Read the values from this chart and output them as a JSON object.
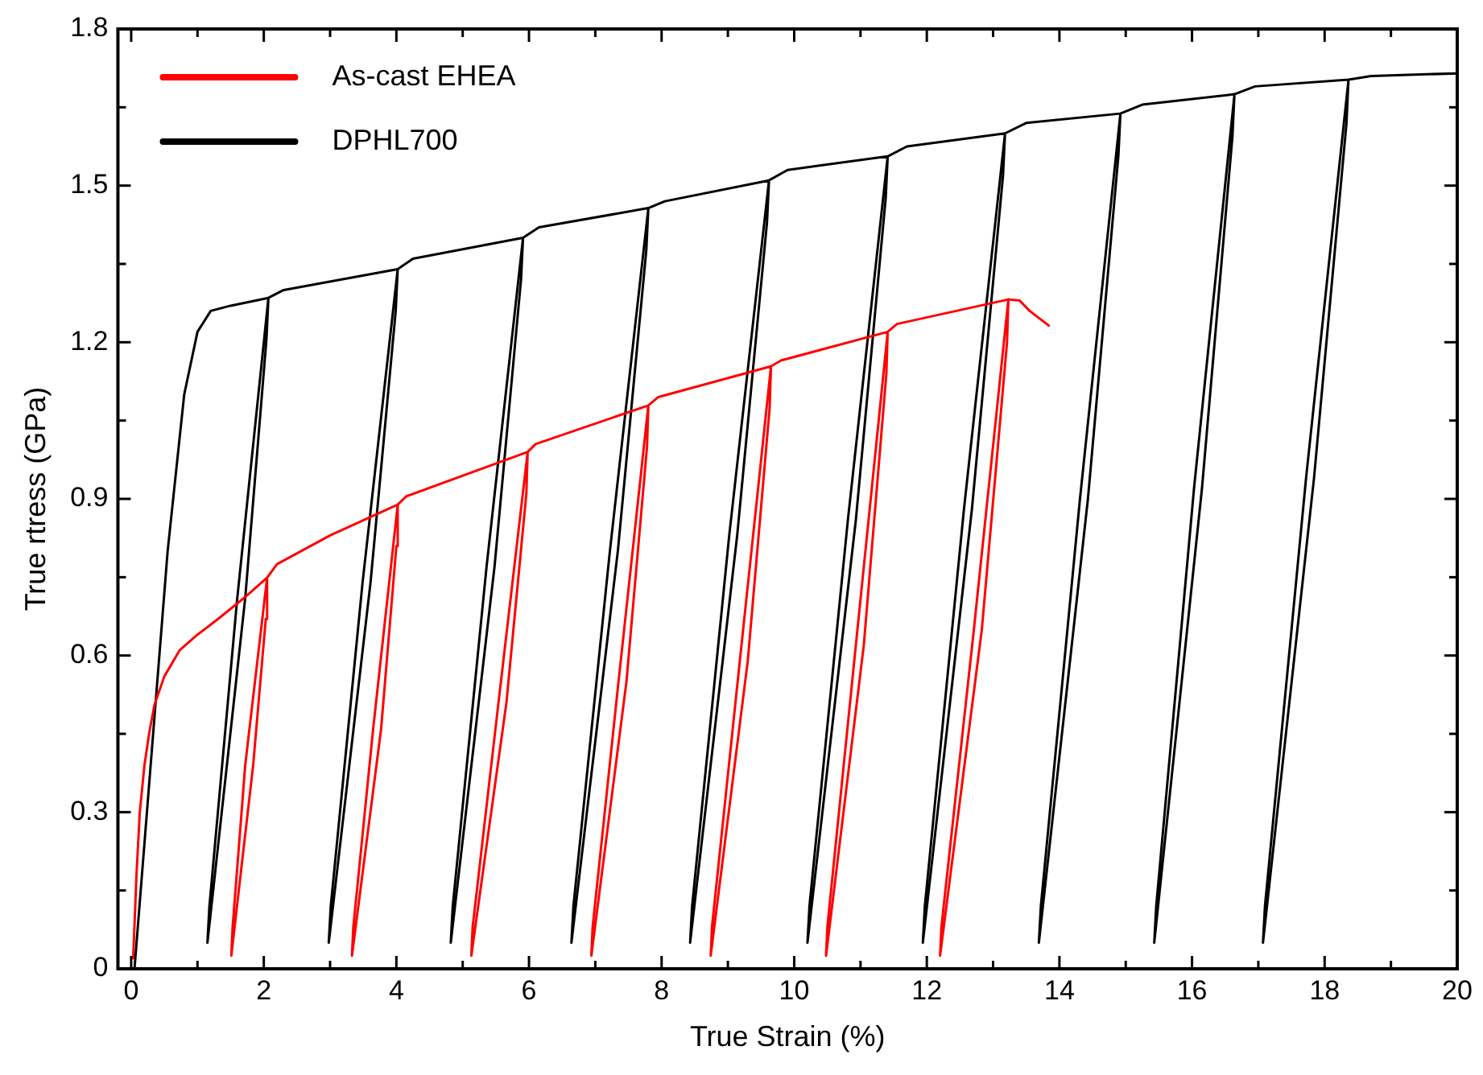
{
  "chart_data": {
    "type": "line",
    "xlabel": "True Strain (%)",
    "ylabel": "True rtress (GPa)",
    "xlim": [
      -0.2,
      20
    ],
    "xticks": [
      0,
      2,
      4,
      6,
      8,
      10,
      12,
      14,
      16,
      18,
      20
    ],
    "ylim": [
      0,
      1.8
    ],
    "yticks": [
      0,
      0.3,
      0.6,
      0.9,
      1.2,
      1.5,
      1.8
    ],
    "grid": false,
    "legend": "top left",
    "marker": "none",
    "line_style": "solid",
    "series": [
      {
        "name": "As-cast EHEA",
        "color": "#ff0000",
        "x": [
          0.03,
          0.08,
          0.13,
          0.2,
          0.27,
          0.35,
          0.5,
          0.73,
          1.0,
          1.31,
          1.7,
          2.05,
          1.72,
          1.53,
          1.51,
          1.84,
          2.03,
          2.05,
          2.2,
          3.0,
          4.02,
          3.65,
          3.35,
          3.33,
          3.77,
          4.0,
          4.02,
          4.15,
          5.98,
          5.54,
          5.15,
          5.13,
          5.66,
          5.96,
          5.98,
          6.1,
          7.8,
          7.35,
          6.96,
          6.94,
          7.47,
          7.78,
          7.8,
          7.95,
          9.65,
          9.18,
          8.76,
          8.74,
          9.3,
          9.63,
          9.65,
          9.8,
          11.41,
          10.93,
          10.5,
          10.48,
          11.05,
          11.39,
          11.41,
          11.55,
          13.23,
          12.71,
          12.22,
          12.2,
          12.83,
          13.21,
          13.23,
          13.4,
          13.55,
          13.84
        ],
        "values": [
          0.02,
          0.18,
          0.3,
          0.39,
          0.45,
          0.505,
          0.56,
          0.61,
          0.64,
          0.67,
          0.71,
          0.749,
          0.39,
          0.08,
          0.025,
          0.39,
          0.67,
          0.749,
          0.775,
          0.83,
          0.889,
          0.46,
          0.08,
          0.025,
          0.46,
          0.81,
          0.889,
          0.905,
          0.99,
          0.51,
          0.08,
          0.025,
          0.51,
          0.91,
          0.99,
          1.005,
          1.079,
          0.55,
          0.08,
          0.025,
          0.55,
          1.0,
          1.079,
          1.095,
          1.154,
          0.59,
          0.08,
          0.025,
          0.59,
          1.075,
          1.154,
          1.165,
          1.22,
          0.62,
          0.08,
          0.025,
          0.62,
          1.14,
          1.22,
          1.235,
          1.282,
          0.65,
          0.08,
          0.025,
          0.65,
          1.2,
          1.282,
          1.28,
          1.26,
          1.232
        ]
      },
      {
        "name": "DPHL700",
        "color": "#000000",
        "x": [
          0.05,
          0.3,
          0.55,
          0.8,
          1.0,
          1.2,
          1.5,
          2.07,
          1.6,
          1.18,
          1.15,
          1.72,
          2.04,
          2.07,
          2.3,
          4.02,
          3.49,
          3.01,
          2.98,
          3.61,
          3.99,
          4.02,
          4.25,
          5.91,
          5.36,
          4.85,
          4.82,
          5.48,
          5.88,
          5.91,
          6.15,
          7.8,
          7.22,
          6.67,
          6.64,
          7.34,
          7.77,
          7.8,
          8.05,
          9.62,
          9.02,
          8.46,
          8.43,
          9.14,
          9.59,
          9.62,
          9.9,
          11.41,
          10.81,
          10.23,
          10.2,
          10.93,
          11.38,
          11.41,
          11.7,
          13.18,
          12.56,
          11.97,
          11.94,
          12.68,
          13.15,
          13.18,
          13.5,
          14.92,
          14.31,
          13.72,
          13.69,
          14.43,
          14.89,
          14.92,
          15.25,
          16.64,
          16.03,
          15.46,
          15.43,
          16.15,
          16.61,
          16.64,
          16.95,
          18.36,
          17.72,
          17.1,
          17.07,
          17.84,
          18.33,
          18.36,
          18.7,
          20
        ],
        "values": [
          0,
          0.4,
          0.8,
          1.1,
          1.22,
          1.26,
          1.27,
          1.285,
          0.71,
          0.12,
          0.05,
          0.71,
          1.205,
          1.285,
          1.3,
          1.34,
          0.74,
          0.12,
          0.05,
          0.74,
          1.26,
          1.34,
          1.36,
          1.4,
          0.77,
          0.12,
          0.05,
          0.77,
          1.32,
          1.4,
          1.42,
          1.457,
          0.8,
          0.12,
          0.05,
          0.8,
          1.377,
          1.457,
          1.47,
          1.51,
          0.83,
          0.12,
          0.05,
          0.83,
          1.43,
          1.51,
          1.53,
          1.556,
          0.86,
          0.12,
          0.05,
          0.86,
          1.476,
          1.556,
          1.575,
          1.6,
          0.88,
          0.12,
          0.05,
          0.88,
          1.52,
          1.6,
          1.62,
          1.638,
          0.9,
          0.12,
          0.05,
          0.9,
          1.558,
          1.638,
          1.655,
          1.675,
          0.92,
          0.12,
          0.05,
          0.92,
          1.595,
          1.675,
          1.69,
          1.703,
          0.94,
          0.12,
          0.05,
          0.94,
          1.62,
          1.703,
          1.71,
          1.715
        ]
      }
    ]
  }
}
